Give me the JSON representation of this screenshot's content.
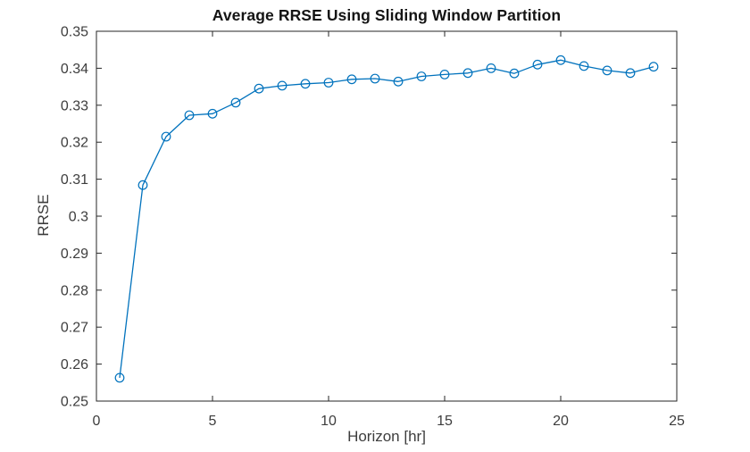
{
  "figure": {
    "background": "#ffffff"
  },
  "chart_data": {
    "type": "line",
    "title": "Average RRSE Using Sliding Window Partition",
    "xlabel": "Horizon [hr]",
    "ylabel": "RRSE",
    "x": [
      1,
      2,
      3,
      4,
      5,
      6,
      7,
      8,
      9,
      10,
      11,
      12,
      13,
      14,
      15,
      16,
      17,
      18,
      19,
      20,
      21,
      22,
      23,
      24
    ],
    "y": [
      0.2563,
      0.3084,
      0.3215,
      0.3273,
      0.3277,
      0.3307,
      0.3345,
      0.3353,
      0.3358,
      0.3361,
      0.337,
      0.3372,
      0.3364,
      0.3378,
      0.3383,
      0.3387,
      0.34,
      0.3386,
      0.341,
      0.3422,
      0.3406,
      0.3394,
      0.3387,
      0.3404
    ],
    "series_name": "Average RRSE",
    "xlim": [
      0,
      25
    ],
    "ylim": [
      0.25,
      0.35
    ],
    "xticks": [
      0,
      5,
      10,
      15,
      20,
      25
    ],
    "xtick_labels": [
      "0",
      "5",
      "10",
      "15",
      "20",
      "25"
    ],
    "yticks": [
      0.25,
      0.26,
      0.27,
      0.28,
      0.29,
      0.3,
      0.31,
      0.32,
      0.33,
      0.34,
      0.35
    ],
    "ytick_labels": [
      "0.25",
      "0.26",
      "0.27",
      "0.28",
      "0.29",
      "0.3",
      "0.31",
      "0.32",
      "0.33",
      "0.34",
      "0.35"
    ],
    "grid": false,
    "legend": null,
    "box": true,
    "tick_direction": "in",
    "marker": "open-circle",
    "line_color": "#0072BD",
    "axis_color": "#262626",
    "tick_label_color": "#3d3d3d",
    "title_color": "#141414"
  }
}
